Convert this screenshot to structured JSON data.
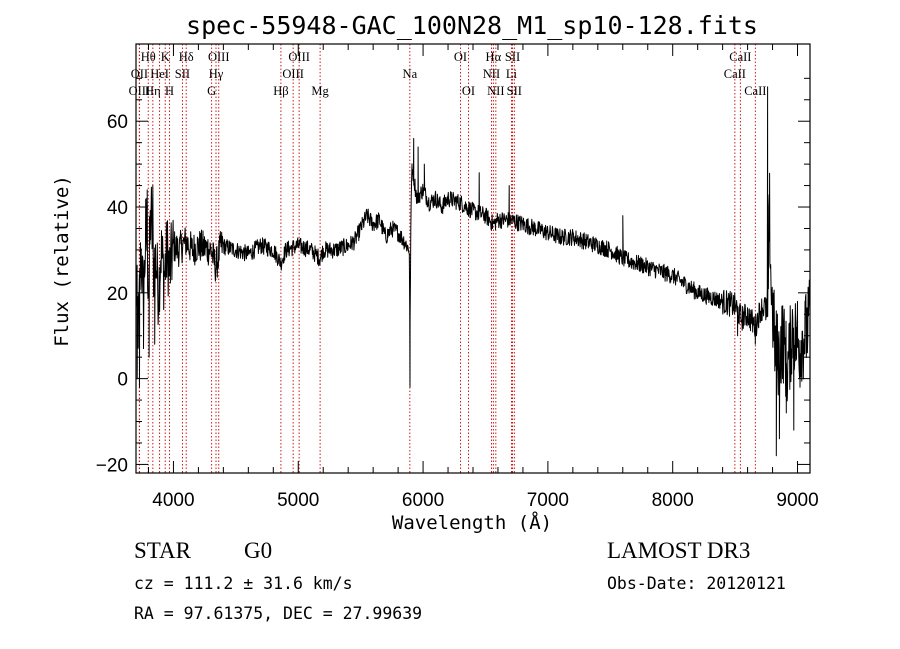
{
  "chart_data": {
    "type": "line",
    "title": "spec-55948-GAC_100N28_M1_sp10-128.fits",
    "xlabel": "Wavelength (Å)",
    "ylabel": "Flux (relative)",
    "xlim": [
      3700,
      9100
    ],
    "ylim": [
      -22,
      78
    ],
    "xticks": [
      4000,
      5000,
      6000,
      7000,
      8000,
      9000
    ],
    "yticks": [
      -20,
      0,
      20,
      40,
      60
    ],
    "xtick_labels": [
      "4000",
      "5000",
      "6000",
      "7000",
      "8000",
      "9000"
    ],
    "ytick_labels": [
      "−20",
      "0",
      "20",
      "40",
      "60"
    ],
    "line_color": "#000000",
    "marker_color": "#cc0000",
    "spectrum_anchors": [
      [
        3700,
        22
      ],
      [
        3720,
        12
      ],
      [
        3740,
        30
      ],
      [
        3760,
        18
      ],
      [
        3780,
        36
      ],
      [
        3800,
        22
      ],
      [
        3820,
        40
      ],
      [
        3840,
        26
      ],
      [
        3860,
        28
      ],
      [
        3880,
        20
      ],
      [
        3900,
        30
      ],
      [
        3925,
        24
      ],
      [
        3950,
        30
      ],
      [
        3970,
        25
      ],
      [
        4000,
        31
      ],
      [
        4040,
        30
      ],
      [
        4100,
        32
      ],
      [
        4150,
        30
      ],
      [
        4200,
        31
      ],
      [
        4300,
        30
      ],
      [
        4340,
        26
      ],
      [
        4380,
        31
      ],
      [
        4500,
        30
      ],
      [
        4600,
        29
      ],
      [
        4700,
        31
      ],
      [
        4800,
        30
      ],
      [
        4861,
        27
      ],
      [
        4900,
        30
      ],
      [
        5000,
        31
      ],
      [
        5100,
        30
      ],
      [
        5175,
        28
      ],
      [
        5200,
        30
      ],
      [
        5300,
        30
      ],
      [
        5400,
        31
      ],
      [
        5450,
        32
      ],
      [
        5500,
        35
      ],
      [
        5550,
        38
      ],
      [
        5600,
        36
      ],
      [
        5650,
        37
      ],
      [
        5700,
        33
      ],
      [
        5750,
        35
      ],
      [
        5800,
        34
      ],
      [
        5850,
        32
      ],
      [
        5890,
        30
      ],
      [
        5895,
        8
      ],
      [
        5900,
        30
      ],
      [
        5910,
        50
      ],
      [
        5930,
        46
      ],
      [
        5950,
        42
      ],
      [
        6000,
        44
      ],
      [
        6050,
        41
      ],
      [
        6100,
        42
      ],
      [
        6150,
        40
      ],
      [
        6200,
        42
      ],
      [
        6300,
        41
      ],
      [
        6400,
        39
      ],
      [
        6500,
        38
      ],
      [
        6563,
        36
      ],
      [
        6600,
        37
      ],
      [
        6700,
        37
      ],
      [
        6800,
        36
      ],
      [
        6900,
        35
      ],
      [
        7000,
        34
      ],
      [
        7100,
        33
      ],
      [
        7200,
        33
      ],
      [
        7300,
        32
      ],
      [
        7400,
        31
      ],
      [
        7500,
        30
      ],
      [
        7600,
        28
      ],
      [
        7700,
        27
      ],
      [
        7800,
        26
      ],
      [
        7900,
        25
      ],
      [
        8000,
        24
      ],
      [
        8100,
        22
      ],
      [
        8200,
        20
      ],
      [
        8300,
        19
      ],
      [
        8400,
        18
      ],
      [
        8500,
        17
      ],
      [
        8550,
        14
      ],
      [
        8600,
        15
      ],
      [
        8662,
        12
      ],
      [
        8700,
        16
      ],
      [
        8740,
        17
      ],
      [
        8760,
        12
      ],
      [
        8775,
        40
      ],
      [
        8790,
        20
      ],
      [
        8820,
        8
      ],
      [
        8850,
        5
      ],
      [
        8880,
        10
      ],
      [
        8920,
        2
      ],
      [
        8960,
        12
      ],
      [
        9000,
        8
      ],
      [
        9060,
        10
      ],
      [
        9100,
        14
      ]
    ],
    "spikes": [
      [
        3710,
        0
      ],
      [
        3728,
        -2
      ],
      [
        3760,
        7
      ],
      [
        3790,
        44
      ],
      [
        3805,
        5
      ],
      [
        3835,
        45
      ],
      [
        3850,
        8
      ],
      [
        5895,
        -2
      ],
      [
        5925,
        56
      ],
      [
        5960,
        54
      ],
      [
        6010,
        50
      ],
      [
        6450,
        48
      ],
      [
        6690,
        45
      ],
      [
        7600,
        38
      ],
      [
        8520,
        10
      ],
      [
        8662,
        8
      ],
      [
        8760,
        68
      ],
      [
        8775,
        32
      ],
      [
        8795,
        20
      ],
      [
        8830,
        -18
      ],
      [
        8855,
        -14
      ],
      [
        8880,
        0
      ],
      [
        8910,
        -8
      ],
      [
        8940,
        8
      ],
      [
        8970,
        -12
      ],
      [
        9000,
        18
      ],
      [
        9020,
        -2
      ],
      [
        9060,
        18
      ]
    ],
    "spectral_lines": [
      {
        "label": "Hθ",
        "wave": 3798,
        "row": 1
      },
      {
        "label": "OII",
        "wave": 3727,
        "row": 2
      },
      {
        "label": "OIII",
        "wave": 3727,
        "row": 3
      },
      {
        "label": "K",
        "wave": 3934,
        "row": 1
      },
      {
        "label": "HeI",
        "wave": 3889,
        "row": 2
      },
      {
        "label": "Hη",
        "wave": 3835,
        "row": 3
      },
      {
        "label": "Hδ",
        "wave": 4102,
        "row": 1
      },
      {
        "label": "SII",
        "wave": 4072,
        "row": 2
      },
      {
        "label": "H",
        "wave": 3969,
        "row": 3
      },
      {
        "label": "OIII",
        "wave": 4363,
        "row": 1
      },
      {
        "label": "Hγ",
        "wave": 4341,
        "row": 2
      },
      {
        "label": "G",
        "wave": 4306,
        "row": 3
      },
      {
        "label": "OIII",
        "wave": 5007,
        "row": 1
      },
      {
        "label": "OIII",
        "wave": 4959,
        "row": 2
      },
      {
        "label": "Hβ",
        "wave": 4861,
        "row": 3
      },
      {
        "label": "Mg",
        "wave": 5175,
        "row": 3
      },
      {
        "label": "Na",
        "wave": 5894,
        "row": 2
      },
      {
        "label": "OI",
        "wave": 6300,
        "row": 1
      },
      {
        "label": "OI",
        "wave": 6364,
        "row": 3
      },
      {
        "label": "Hα",
        "wave": 6563,
        "row": 1
      },
      {
        "label": "NII",
        "wave": 6548,
        "row": 2
      },
      {
        "label": "NII",
        "wave": 6583,
        "row": 3
      },
      {
        "label": "SII",
        "wave": 6717,
        "row": 1
      },
      {
        "label": "Li",
        "wave": 6708,
        "row": 2
      },
      {
        "label": "SII",
        "wave": 6731,
        "row": 3
      },
      {
        "label": "CaII",
        "wave": 8542,
        "row": 1
      },
      {
        "label": "CaII",
        "wave": 8498,
        "row": 2
      },
      {
        "label": "CaII",
        "wave": 8662,
        "row": 3
      }
    ]
  },
  "info": {
    "object_class": "STAR",
    "subclass": "G0",
    "survey": "LAMOST DR3",
    "redshift": "cz = 111.2 ± 31.6 km/s",
    "obs_date": "Obs-Date: 20120121",
    "coords": "RA =  97.61375, DEC =  27.99639"
  }
}
